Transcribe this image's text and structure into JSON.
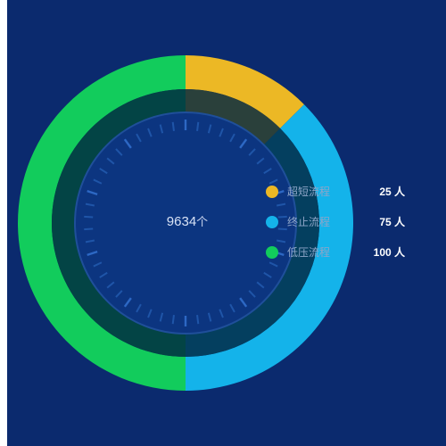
{
  "center": {
    "value": "9634",
    "unit": "个"
  },
  "legend": {
    "items": [
      {
        "name": "超短流程",
        "value": "25 人",
        "color": "#ecb825"
      },
      {
        "name": "终止流程",
        "value": "75 人",
        "color": "#14b3ea"
      },
      {
        "name": "低压流程",
        "value": "100 人",
        "color": "#12cc5c"
      }
    ]
  },
  "chart_data": {
    "type": "pie",
    "series": [
      {
        "name": "超短流程",
        "value": 25,
        "color": "#ecb825"
      },
      {
        "name": "终止流程",
        "value": 75,
        "color": "#14b3ea"
      },
      {
        "name": "低压流程",
        "value": 100,
        "color": "#12cc5c"
      }
    ],
    "total_label": "9634",
    "unit": "个"
  }
}
